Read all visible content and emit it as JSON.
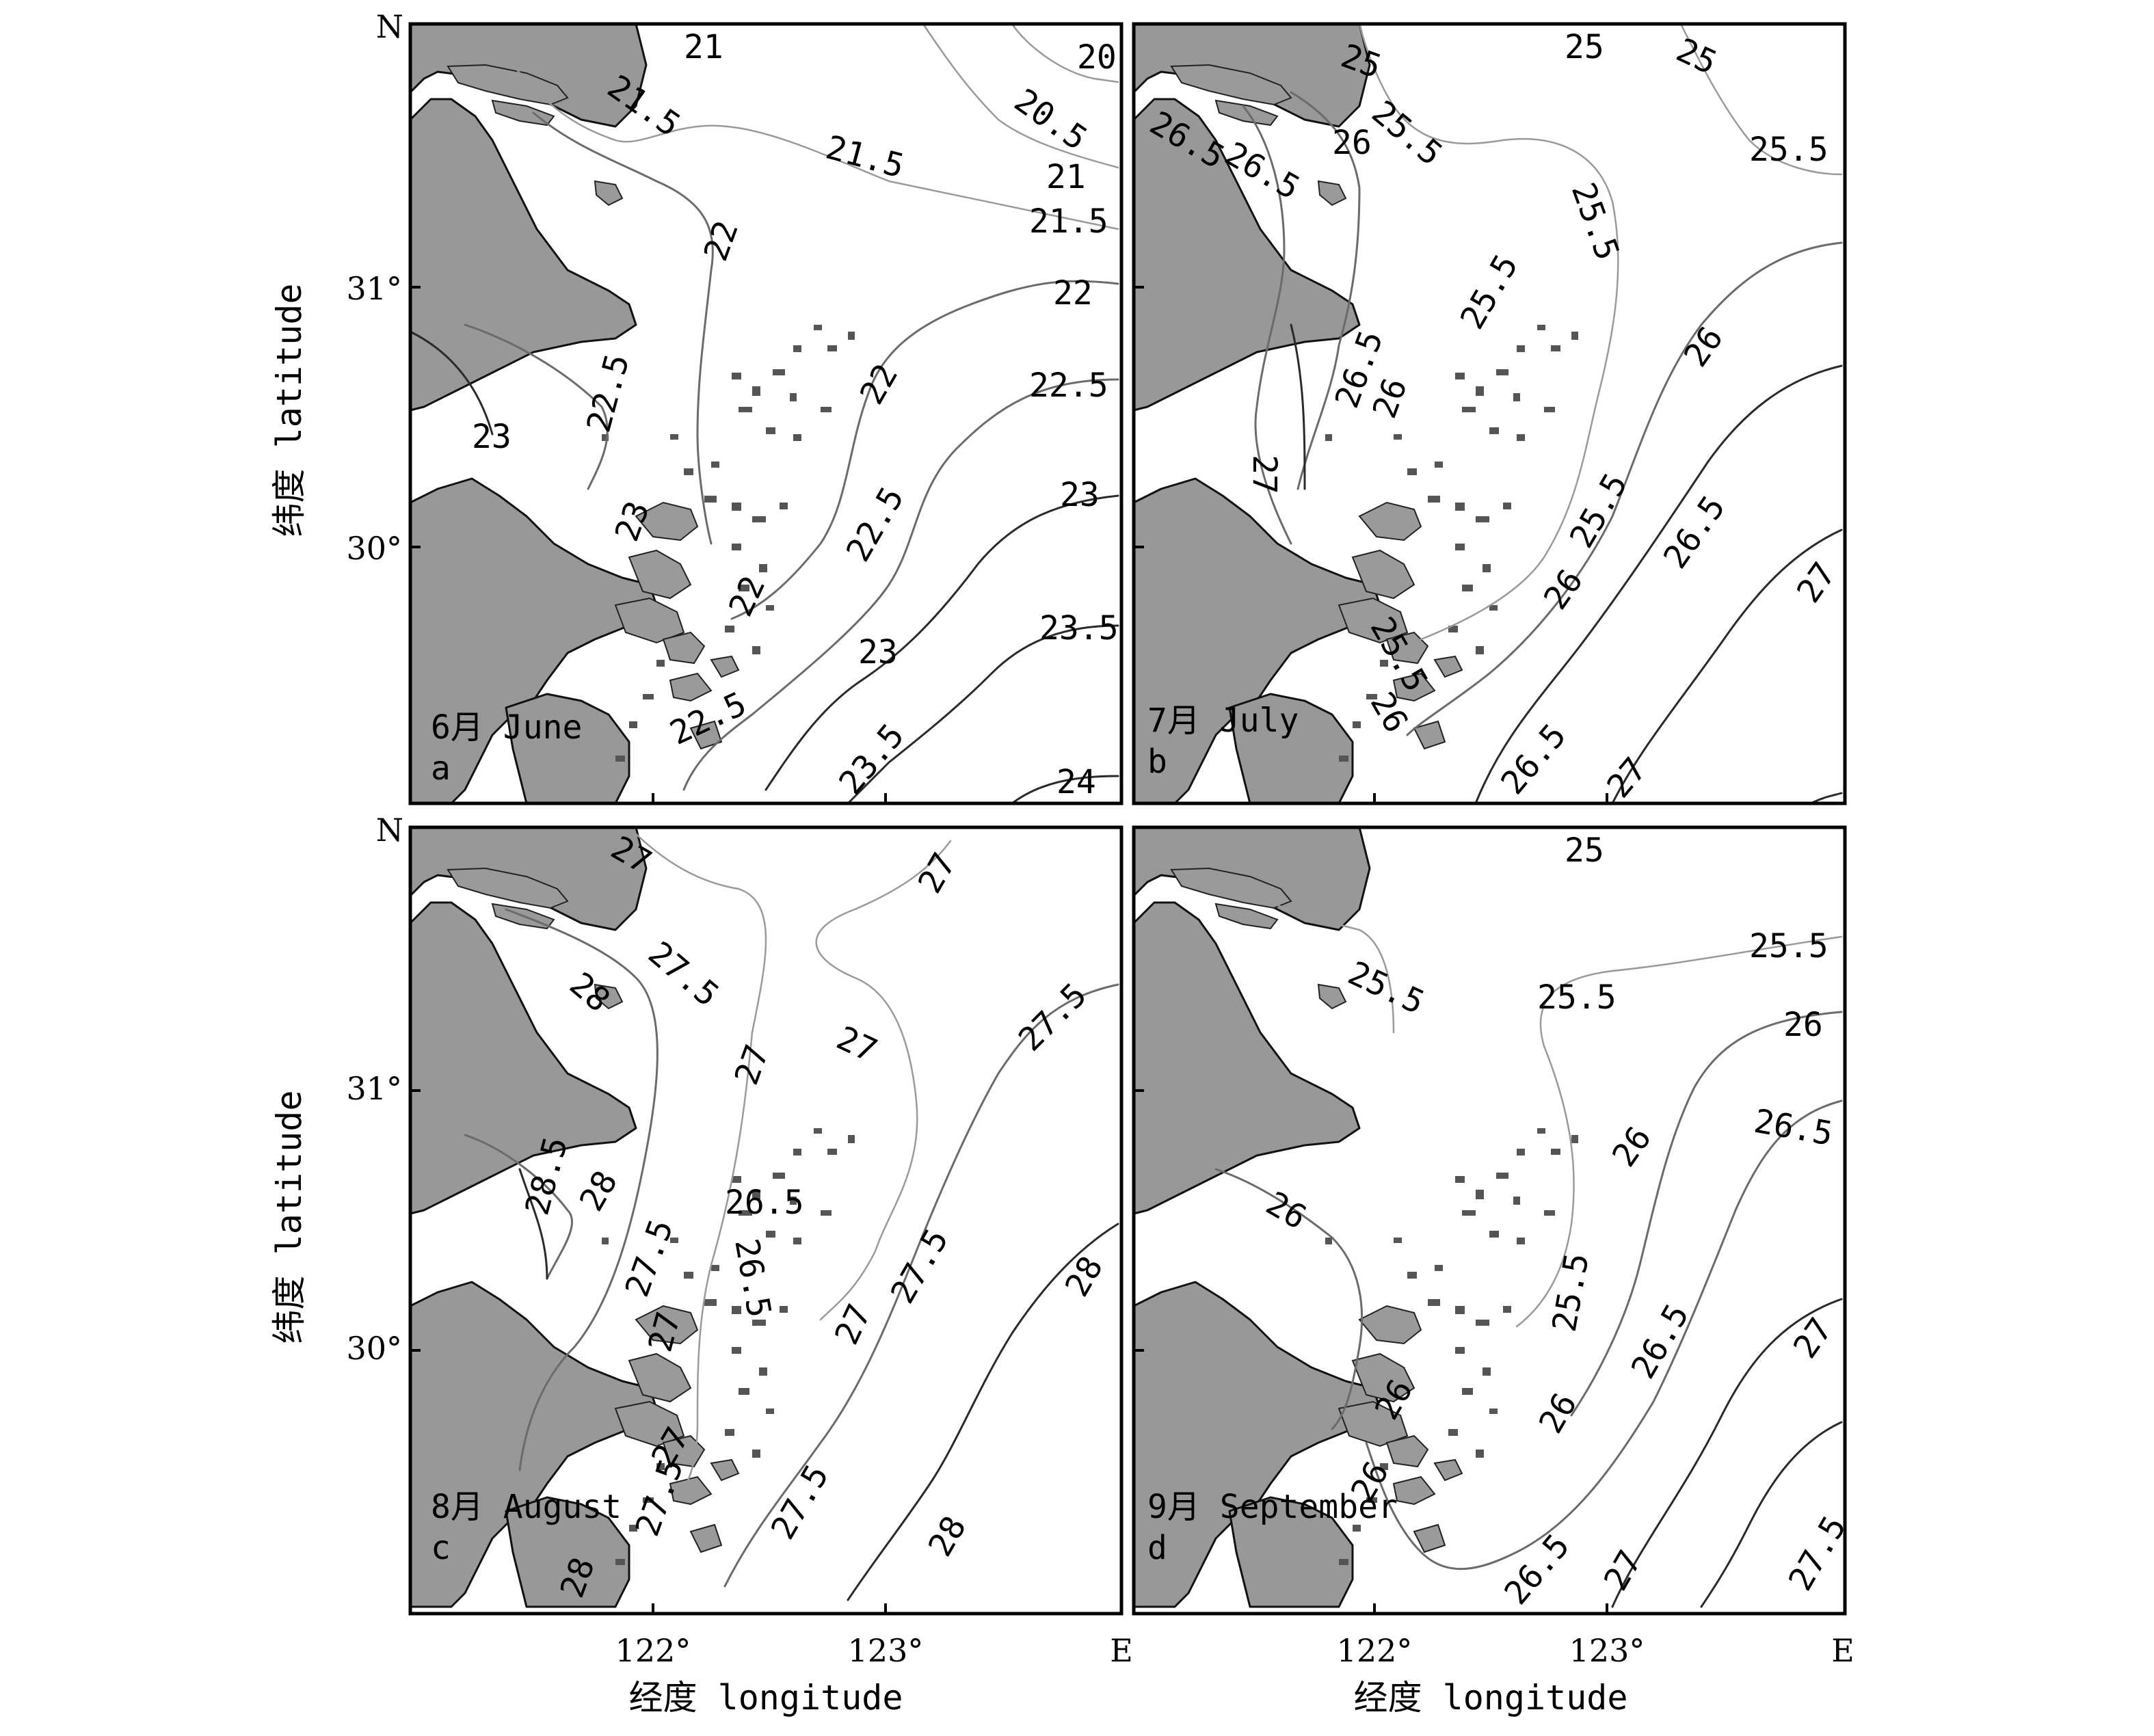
{
  "axes": {
    "y_title": "纬度 latitude",
    "x_title": "经度 longitude",
    "north_label": "N",
    "east_label": "E",
    "lat_ticks": [
      "31°",
      "30°"
    ],
    "lon_ticks": [
      "122°",
      "123°"
    ]
  },
  "panels": [
    {
      "month": "6月 June",
      "letter": "a",
      "labels": [
        "21",
        "20",
        "21.5",
        "20.5",
        "21.5",
        "21",
        "21.5",
        "22",
        "22",
        "22.5",
        "23",
        "22",
        "22.5",
        "22.5",
        "23",
        "22",
        "23",
        "23.5",
        "22.5",
        "23.5",
        "24",
        "23"
      ]
    },
    {
      "month": "7月 July",
      "letter": "b",
      "labels": [
        "25",
        "25",
        "25",
        "25.5",
        "26.5",
        "26",
        "26.5",
        "25.5",
        "25.5",
        "25.5",
        "26",
        "26.5",
        "26",
        "27",
        "25.5",
        "26.5",
        "27",
        "26",
        "25.5",
        "26",
        "26.5",
        "27"
      ]
    },
    {
      "month": "8月 August",
      "letter": "c",
      "labels": [
        "27",
        "27",
        "27.5",
        "28",
        "27",
        "27",
        "27.5",
        "28.5",
        "28",
        "26.5",
        "27.5",
        "26.5",
        "27",
        "27",
        "27.5",
        "28",
        "27.5",
        "28",
        "27",
        "27.5",
        "28"
      ]
    },
    {
      "month": "9月 September",
      "letter": "d",
      "labels": [
        "25",
        "25.5",
        "25.5",
        "25.5",
        "26",
        "26",
        "26.5",
        "26",
        "25.5",
        "26",
        "26.5",
        "27",
        "26",
        "26",
        "26.5",
        "27",
        "27.5"
      ]
    }
  ]
}
